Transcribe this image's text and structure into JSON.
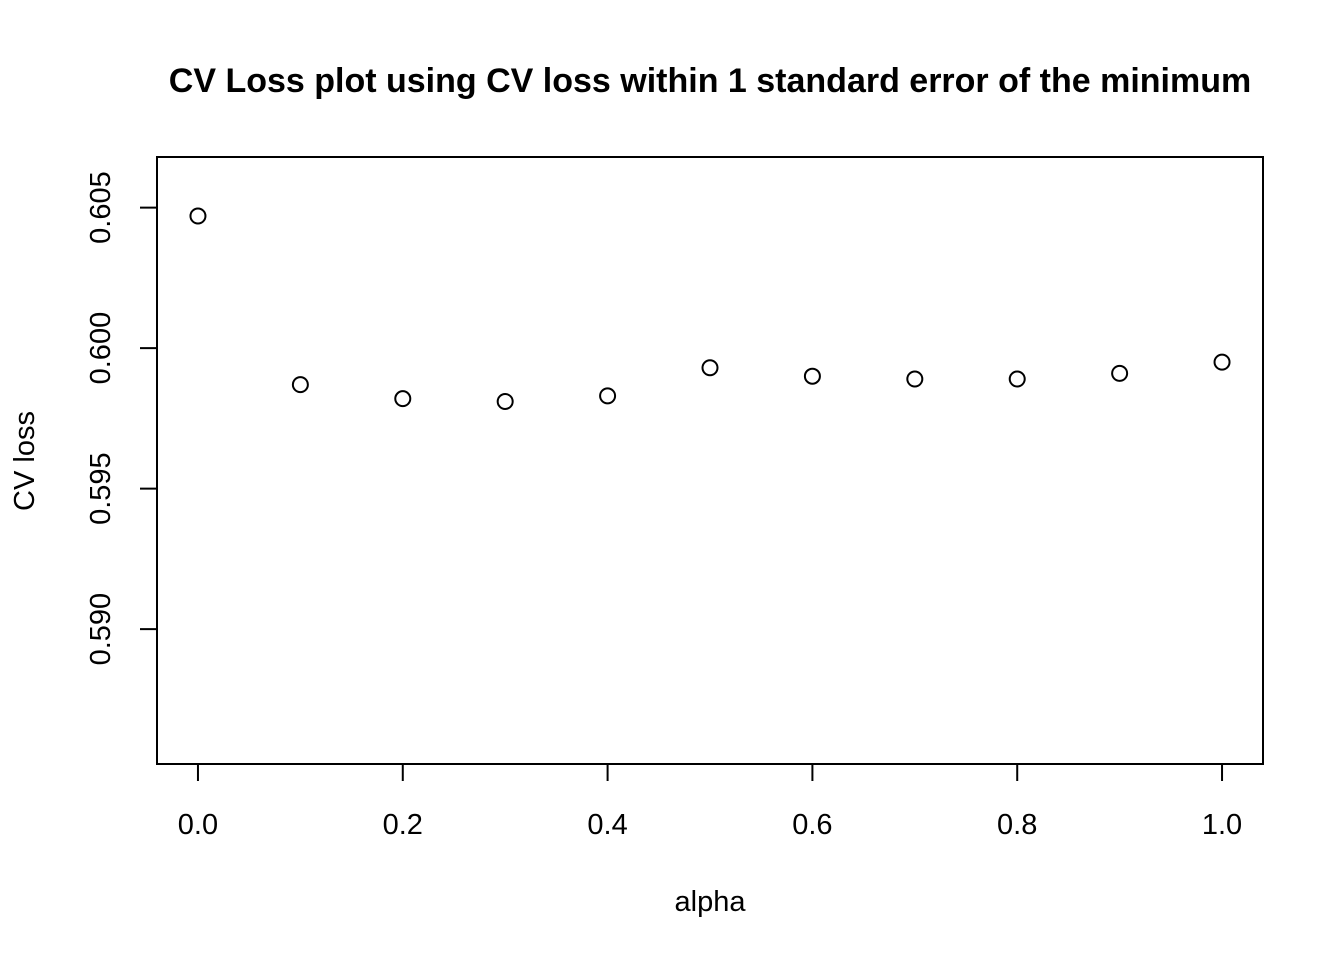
{
  "chart_data": {
    "type": "scatter",
    "title": "CV Loss plot using CV loss within 1 standard error of the minimum",
    "xlabel": "alpha",
    "ylabel": "CV loss",
    "xlim": [
      -0.04,
      1.04
    ],
    "ylim": [
      0.5852,
      0.6068
    ],
    "x_ticks": [
      0.0,
      0.2,
      0.4,
      0.6,
      0.8,
      1.0
    ],
    "x_tick_labels": [
      "0.0",
      "0.2",
      "0.4",
      "0.6",
      "0.8",
      "1.0"
    ],
    "y_ticks": [
      0.59,
      0.595,
      0.6,
      0.605
    ],
    "y_tick_labels": [
      "0.590",
      "0.595",
      "0.600",
      "0.605"
    ],
    "grid": false,
    "marker": "open-circle",
    "series": [
      {
        "x": [
          0.0,
          0.1,
          0.2,
          0.3,
          0.4,
          0.5,
          0.6,
          0.7,
          0.8,
          0.9,
          1.0
        ],
        "y": [
          0.6047,
          0.5987,
          0.5982,
          0.5981,
          0.5983,
          0.5993,
          0.599,
          0.5989,
          0.5989,
          0.5991,
          0.5995
        ]
      }
    ]
  }
}
